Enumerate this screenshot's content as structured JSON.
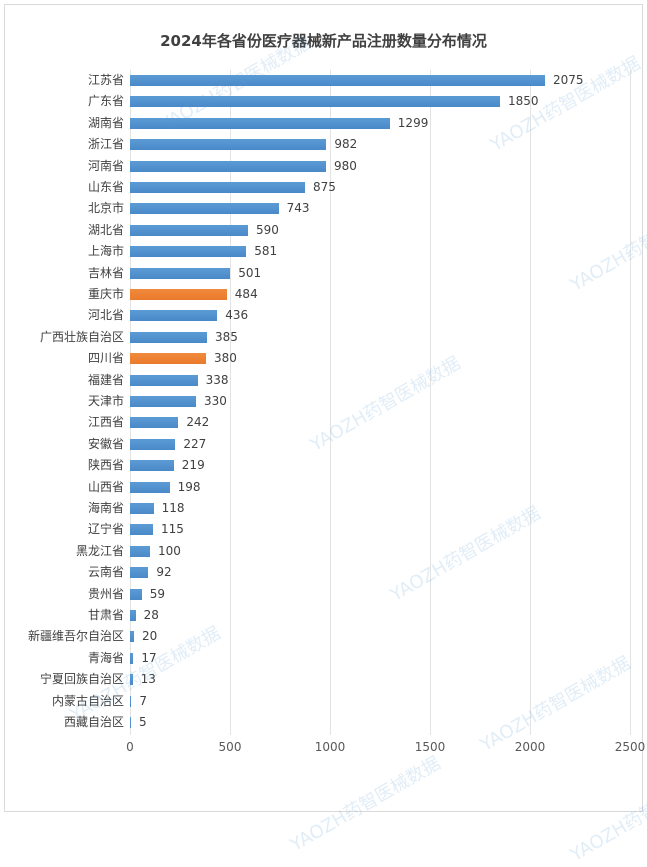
{
  "chart_data": {
    "type": "bar",
    "orientation": "horizontal",
    "title": "2024年各省份医疗器械新产品注册数量分布情况",
    "xlabel": "",
    "ylabel": "",
    "xlim": [
      0,
      2500
    ],
    "xticks": [
      0,
      500,
      1000,
      1500,
      2000,
      2500
    ],
    "grid": true,
    "legend": null,
    "highlight_color": "#ED7D31",
    "bar_color": "#5B9BD5",
    "categories": [
      "江苏省",
      "广东省",
      "湖南省",
      "浙江省",
      "河南省",
      "山东省",
      "北京市",
      "湖北省",
      "上海市",
      "吉林省",
      "重庆市",
      "河北省",
      "广西壮族自治区",
      "四川省",
      "福建省",
      "天津市",
      "江西省",
      "安徽省",
      "陕西省",
      "山西省",
      "海南省",
      "辽宁省",
      "黑龙江省",
      "云南省",
      "贵州省",
      "甘肃省",
      "新疆维吾尔自治区",
      "青海省",
      "宁夏回族自治区",
      "内蒙古自治区",
      "西藏自治区"
    ],
    "values": [
      2075,
      1850,
      1299,
      982,
      980,
      875,
      743,
      590,
      581,
      501,
      484,
      436,
      385,
      380,
      338,
      330,
      242,
      227,
      219,
      198,
      118,
      115,
      100,
      92,
      59,
      28,
      20,
      17,
      13,
      7,
      5
    ],
    "highlighted": [
      "重庆市",
      "四川省"
    ]
  },
  "watermark": "YAOZH药智医械数据"
}
